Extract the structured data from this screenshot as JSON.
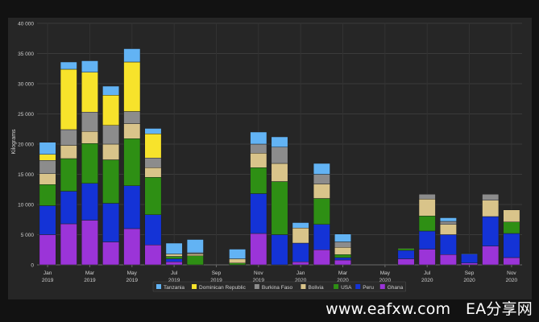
{
  "chart_data": {
    "type": "bar",
    "stacked": true,
    "ylabel": "Kilograms",
    "ylim": [
      0,
      40000
    ],
    "yticks": [
      0,
      5000,
      10000,
      15000,
      20000,
      25000,
      30000,
      35000,
      40000
    ],
    "ytick_labels": [
      "0",
      "5 000",
      "10 000",
      "15 000",
      "20 000",
      "25 000",
      "30 000",
      "35 000",
      "40 000"
    ],
    "grid": true,
    "legend_position": "bottom",
    "categories": [
      "2019-01",
      "2019-02",
      "2019-03",
      "2019-04",
      "2019-05",
      "2019-06",
      "2019-07",
      "2019-08",
      "2019-09",
      "2019-10",
      "2019-11",
      "2019-12",
      "2020-01",
      "2020-02",
      "2020-03",
      "2020-04",
      "2020-05",
      "2020-06",
      "2020-07",
      "2020-08",
      "2020-09",
      "2020-10",
      "2020-11"
    ],
    "xtick_labels": [
      {
        "category": "2019-01",
        "lines": [
          "Jan",
          "2019"
        ]
      },
      {
        "category": "2019-03",
        "lines": [
          "Mar",
          "2019"
        ]
      },
      {
        "category": "2019-05",
        "lines": [
          "May",
          "2019"
        ]
      },
      {
        "category": "2019-07",
        "lines": [
          "Jul",
          "2019"
        ]
      },
      {
        "category": "2019-09",
        "lines": [
          "Sep",
          "2019"
        ]
      },
      {
        "category": "2019-11",
        "lines": [
          "Nov",
          "2019"
        ]
      },
      {
        "category": "2020-01",
        "lines": [
          "Jan",
          "2020"
        ]
      },
      {
        "category": "2020-03",
        "lines": [
          "Mar",
          "2020"
        ]
      },
      {
        "category": "2020-05",
        "lines": [
          "May",
          "2020"
        ]
      },
      {
        "category": "2020-07",
        "lines": [
          "Jul",
          "2020"
        ]
      },
      {
        "category": "2020-09",
        "lines": [
          "Sep",
          "2020"
        ]
      },
      {
        "category": "2020-11",
        "lines": [
          "Nov",
          "2020"
        ]
      }
    ],
    "series": [
      {
        "name": "Ghana",
        "color": "#9b34d8",
        "values": [
          5000,
          6800,
          7400,
          3800,
          6000,
          3300,
          500,
          0,
          0,
          0,
          5200,
          0,
          500,
          2500,
          800,
          0,
          0,
          1000,
          2600,
          1700,
          300,
          3100,
          1200
        ]
      },
      {
        "name": "Peru",
        "color": "#1433d6",
        "values": [
          4800,
          5400,
          6100,
          6400,
          7100,
          5000,
          500,
          0,
          0,
          0,
          6600,
          5000,
          3100,
          4200,
          400,
          0,
          0,
          1400,
          3000,
          3300,
          1500,
          4900,
          4000
        ]
      },
      {
        "name": "USA",
        "color": "#2e8f14",
        "values": [
          3500,
          5400,
          6600,
          7200,
          7800,
          6200,
          400,
          1500,
          0,
          300,
          4300,
          8800,
          0,
          4300,
          500,
          0,
          0,
          300,
          2500,
          0,
          0,
          0,
          1900
        ]
      },
      {
        "name": "Bolivia",
        "color": "#d9c48a",
        "values": [
          1800,
          2200,
          2000,
          2600,
          2500,
          1600,
          400,
          300,
          0,
          700,
          2400,
          3000,
          2500,
          2400,
          1200,
          0,
          0,
          0,
          2800,
          1700,
          0,
          2700,
          2000
        ]
      },
      {
        "name": "Burkina Faso",
        "color": "#8c8c8c",
        "values": [
          2200,
          2600,
          3200,
          3100,
          2000,
          1600,
          0,
          200,
          0,
          0,
          1500,
          2700,
          0,
          1600,
          900,
          0,
          0,
          100,
          800,
          500,
          0,
          1000,
          0
        ]
      },
      {
        "name": "Dominican Republic",
        "color": "#f7e32b",
        "values": [
          1000,
          10000,
          6600,
          5000,
          8200,
          4000,
          0,
          0,
          0,
          0,
          0,
          0,
          0,
          0,
          0,
          0,
          0,
          0,
          0,
          0,
          0,
          0,
          0
        ]
      },
      {
        "name": "Tanzania",
        "color": "#62b3f4",
        "values": [
          2000,
          1200,
          1900,
          1500,
          2200,
          900,
          1800,
          2200,
          0,
          1600,
          2000,
          1700,
          900,
          1800,
          1300,
          0,
          0,
          0,
          0,
          600,
          100,
          0,
          0
        ]
      }
    ]
  }
}
